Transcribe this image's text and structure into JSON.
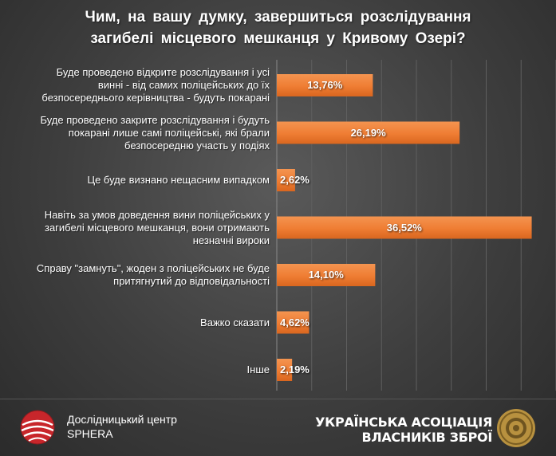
{
  "title_lines": [
    "Чим, на вашу думку, завершиться розслідування",
    "загибелі місцевого мешканця у Кривому Озері?"
  ],
  "chart_data": {
    "type": "bar",
    "orientation": "horizontal",
    "categories": [
      "Буде проведено відкрите розслідування і усі винні - від самих поліцейських до їх безпосереднього керівництва - будуть покарані",
      "Буде проведено закрите розслідування і будуть покарані лише самі поліцейські, які брали безпосередню участь у подіях",
      "Це буде визнано нещасним випадком",
      "Навіть за умов доведення вини поліцейських у загибелі місцевого мешканця, вони отримають незначні вироки",
      "Справу \"замнуть\", жоден з поліцейських не буде притягнутий до відповідальності",
      "Важко сказати",
      "Інше"
    ],
    "category_lines": [
      [
        "Буде проведено відкрите розслідування і усі",
        "винні  - від самих поліцейських до їх",
        "безпосереднього керівництва - будуть покарані"
      ],
      [
        "Буде проведено закрите розслідування і будуть",
        "покарані лише самі поліцейські, які брали",
        "безпосередню участь у подіях"
      ],
      [
        "Це буде визнано нещасним випадком"
      ],
      [
        "Навіть за умов доведення вини поліцейських у",
        "загибелі місцевого мешканця, вони отримають",
        "незначні вироки"
      ],
      [
        "Справу \"замнуть\", жоден з поліцейських не буде",
        "притягнутий до відповідальності"
      ],
      [
        "Важко сказати"
      ],
      [
        "Інше"
      ]
    ],
    "values": [
      13.76,
      26.19,
      2.62,
      36.52,
      14.1,
      4.62,
      2.19
    ],
    "value_labels": [
      "13,76%",
      "26,19%",
      "2,62%",
      "36,52%",
      "14,10%",
      "4,62%",
      "2,19%"
    ],
    "xlim": [
      0,
      40
    ],
    "bar_color": "#ef7d33",
    "grid": true
  },
  "footer": {
    "left_line1": "Дослідницький центр",
    "left_line2": "SPHERA",
    "right_line1": "УКРАЇНСЬКА АСОЦІАЦІЯ",
    "right_line2": "ВЛАСНИКІВ ЗБРОЇ"
  }
}
